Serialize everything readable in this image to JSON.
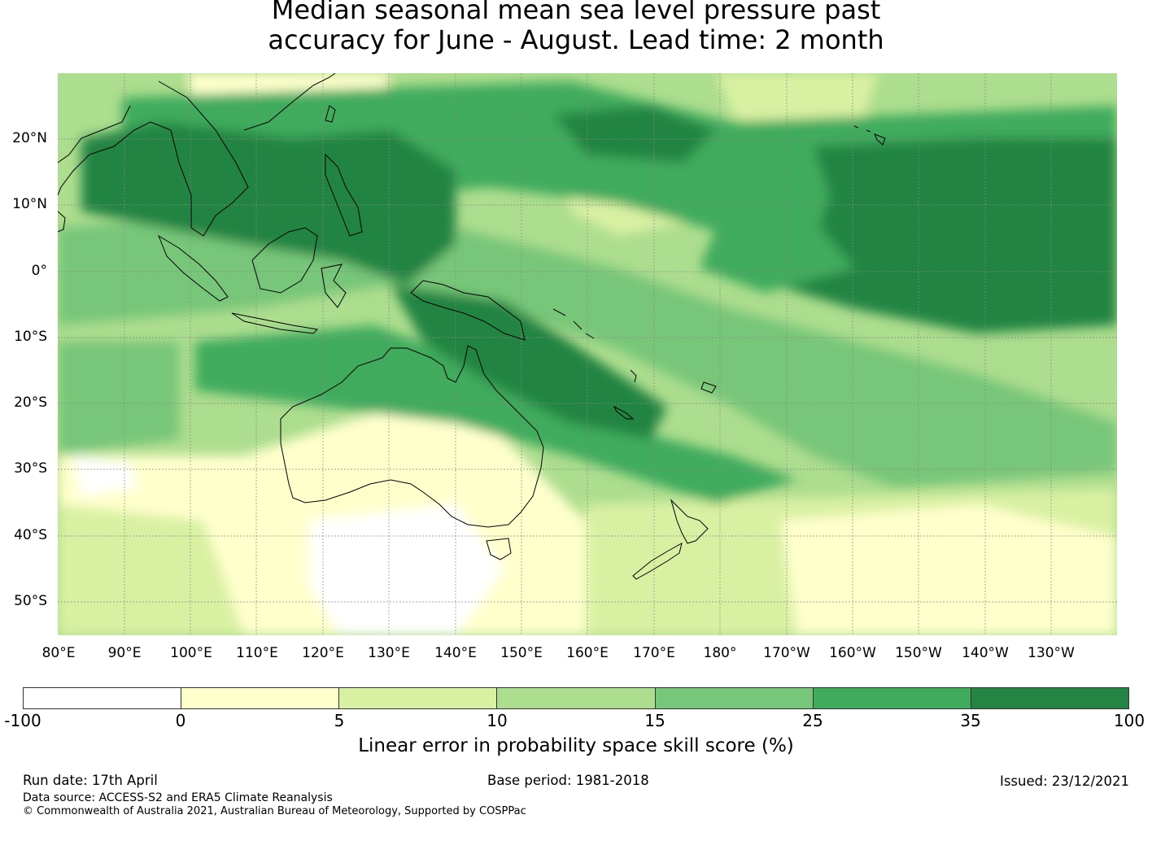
{
  "title": {
    "line1": "Median seasonal mean sea level pressure past",
    "line2": "accuracy for June - August. Lead time: 2 month"
  },
  "map": {
    "lat_labels": [
      "20°N",
      "10°N",
      "0°",
      "10°S",
      "20°S",
      "30°S",
      "40°S",
      "50°S"
    ],
    "lon_labels": [
      "80°E",
      "90°E",
      "100°E",
      "110°E",
      "120°E",
      "130°E",
      "140°E",
      "150°E",
      "160°E",
      "170°E",
      "180°",
      "170°W",
      "160°W",
      "150°W",
      "140°W",
      "130°W"
    ],
    "extent": {
      "lon_min": 80,
      "lon_max": 240,
      "lat_min": -55,
      "lat_max": 30
    }
  },
  "colorbar": {
    "ticks": [
      "-100",
      "0",
      "5",
      "10",
      "15",
      "25",
      "35",
      "100"
    ],
    "colors": [
      "#ffffff",
      "#ffffcc",
      "#d9f0a3",
      "#addd8e",
      "#78c679",
      "#41ab5d",
      "#238443"
    ],
    "label": "Linear error in probability space skill score (%)"
  },
  "footer": {
    "run_date": "Run date: 17th April",
    "base_period": "Base period: 1981-2018",
    "issued": "Issued: 23/12/2021",
    "data_source": "Data source: ACCESS-S2 and ERA5 Climate Reanalysis",
    "copyright": "© Commonwealth of Australia 2021, Australian Bureau of Meteorology, Supported by COSPPac"
  }
}
